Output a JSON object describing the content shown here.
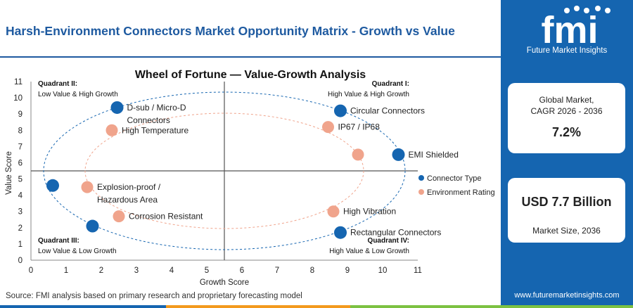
{
  "header": {
    "title": "Harsh-Environment Connectors Market Opportunity Matrix - Growth vs Value"
  },
  "chart_data": {
    "type": "scatter",
    "title": "Wheel of Fortune — Value-Growth Analysis",
    "xlabel": "Growth Score",
    "ylabel": "Value Score",
    "xlim": [
      0,
      11
    ],
    "ylim": [
      0,
      11
    ],
    "xticks": [
      "0",
      "1",
      "2",
      "3",
      "4",
      "5",
      "6",
      "7",
      "8",
      "9",
      "10",
      "11"
    ],
    "yticks": [
      "0",
      "1",
      "2",
      "3",
      "4",
      "5",
      "6",
      "7",
      "8",
      "9",
      "10",
      "11"
    ],
    "grid": false,
    "legend_position": "right",
    "divider": {
      "x": 5.5,
      "y": 5.5
    },
    "quadrants": [
      {
        "title": "Quadrant II:",
        "subtitle": "Low Value & High Growth",
        "position": "top-left"
      },
      {
        "title": "Quadrant I:",
        "subtitle": "High Value & High Growth",
        "position": "top-right"
      },
      {
        "title": "Quadrant III:",
        "subtitle": "Low Value & Low Growth",
        "position": "bottom-left"
      },
      {
        "title": "Quadrant IV:",
        "subtitle": "High Value & Low Growth",
        "position": "bottom-right"
      }
    ],
    "series": [
      {
        "name": "Connector Type",
        "color": "#1565b0",
        "points": [
          {
            "label": "D-sub / Micro-D Connectors",
            "label_lines": [
              "D-sub / Micro-D",
              "Connectors"
            ],
            "x": 2.45,
            "y": 9.4
          },
          {
            "label": "Circular Connectors",
            "label_lines": [
              "Circular Connectors"
            ],
            "x": 8.8,
            "y": 9.2
          },
          {
            "label": "EMI Shielded",
            "label_lines": [
              "EMI Shielded"
            ],
            "x": 10.45,
            "y": 6.5
          },
          {
            "label": "",
            "label_lines": [],
            "x": 0.62,
            "y": 4.6
          },
          {
            "label": "",
            "label_lines": [],
            "x": 1.75,
            "y": 2.1
          },
          {
            "label": "Rectangular Connectors",
            "label_lines": [
              "Rectangular Connectors"
            ],
            "x": 8.8,
            "y": 1.7
          }
        ]
      },
      {
        "name": "Environment Rating",
        "color": "#f0a48c",
        "points": [
          {
            "label": "High Temperature",
            "label_lines": [
              "High Temperature"
            ],
            "x": 2.3,
            "y": 8.0
          },
          {
            "label": "IP67 / IP68",
            "label_lines": [
              "IP67 / IP68"
            ],
            "x": 8.45,
            "y": 8.2
          },
          {
            "label": "EMI Shielded",
            "label_lines": [],
            "x": 9.3,
            "y": 6.5
          },
          {
            "label": "Explosion-proof / Hazardous Area",
            "label_lines": [
              "Explosion-proof /",
              "Hazardous Area"
            ],
            "x": 1.6,
            "y": 4.5
          },
          {
            "label": "Corrosion Resistant",
            "label_lines": [
              "Corrosion Resistant"
            ],
            "x": 2.5,
            "y": 2.7
          },
          {
            "label": "High Vibration",
            "label_lines": [
              "High Vibration"
            ],
            "x": 8.6,
            "y": 3.0
          }
        ]
      }
    ]
  },
  "source": "Source: FMI analysis based on primary research and proprietary forecasting model",
  "sidebar": {
    "logo_text": "fmi",
    "logo_subtitle": "Future Market Insights",
    "cagr_label_line1": "Global Market,",
    "cagr_label_line2": "CAGR 2026 - 2036",
    "cagr_value": "7.2%",
    "size_value": "USD 7.7 Billion",
    "size_label": "Market Size, 2036",
    "url": "www.futuremarketinsights.com"
  },
  "colors": {
    "brand_blue": "#1565b0",
    "accent_salmon": "#f0a48c",
    "bar_orange": "#f39a1e",
    "bar_green": "#7cc242"
  }
}
